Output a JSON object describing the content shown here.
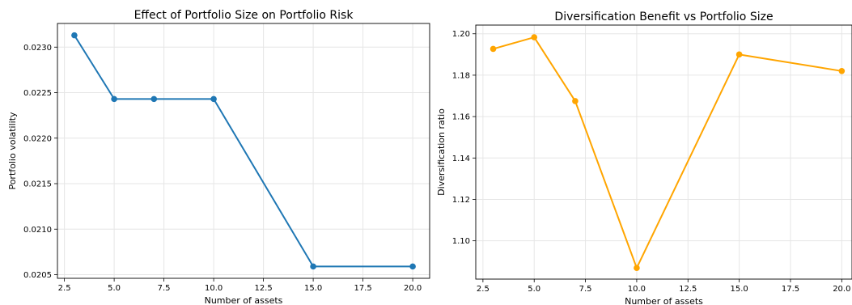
{
  "chart_data": [
    {
      "type": "line",
      "title": "Effect of Portfolio Size on Portfolio Risk",
      "xlabel": "Number of assets",
      "ylabel": "Portfolio volatility",
      "color": "#1f77b4",
      "x": [
        3,
        5,
        7,
        10,
        15,
        20
      ],
      "values": [
        0.02313,
        0.02243,
        0.02243,
        0.02243,
        0.02059,
        0.02059
      ],
      "xlim": [
        2.15,
        20.85
      ],
      "ylim": [
        0.02046,
        0.02326
      ],
      "xticks": [
        2.5,
        5.0,
        7.5,
        10.0,
        12.5,
        15.0,
        17.5,
        20.0
      ],
      "xtick_labels": [
        "2.5",
        "5.0",
        "7.5",
        "10.0",
        "12.5",
        "15.0",
        "17.5",
        "20.0"
      ],
      "yticks": [
        0.0205,
        0.021,
        0.0215,
        0.022,
        0.0225,
        0.023
      ],
      "ytick_labels": [
        "0.0205",
        "0.0210",
        "0.0215",
        "0.0220",
        "0.0225",
        "0.0230"
      ],
      "grid": true
    },
    {
      "type": "line",
      "title": "Diversification Benefit vs Portfolio Size",
      "xlabel": "Number of assets",
      "ylabel": "Diversification ratio",
      "color": "#ffa500",
      "x": [
        3,
        5,
        7,
        10,
        15,
        20
      ],
      "values": [
        1.1927,
        1.1983,
        1.1675,
        1.0869,
        1.19,
        1.182
      ],
      "xlim": [
        2.15,
        20.5
      ],
      "ylim": [
        1.0815,
        1.2042
      ],
      "xticks": [
        2.5,
        5.0,
        7.5,
        10.0,
        12.5,
        15.0,
        17.5,
        20.0
      ],
      "xtick_labels": [
        "2.5",
        "5.0",
        "7.5",
        "10.0",
        "12.5",
        "15.0",
        "17.5",
        "20.0"
      ],
      "yticks": [
        1.1,
        1.12,
        1.14,
        1.16,
        1.18,
        1.2
      ],
      "ytick_labels": [
        "1.10",
        "1.12",
        "1.14",
        "1.16",
        "1.18",
        "1.20"
      ],
      "grid": true
    }
  ]
}
